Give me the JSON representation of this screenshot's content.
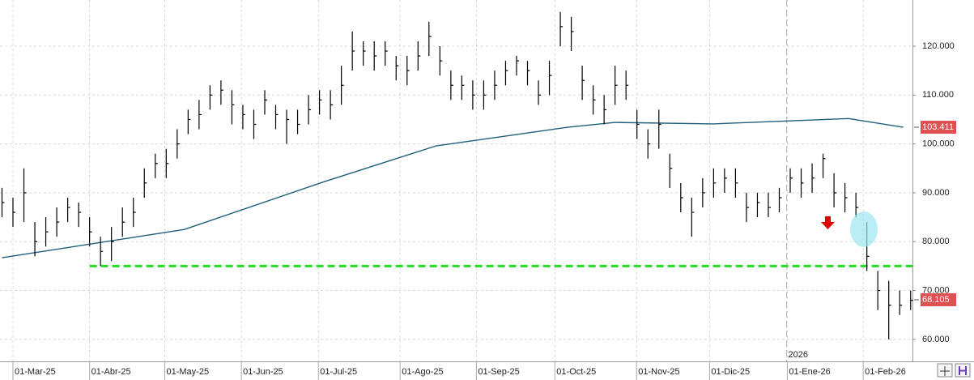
{
  "chart_data": {
    "type": "ohlc",
    "color": "#000000",
    "x": [
      -3,
      0,
      3,
      6,
      9,
      12,
      15,
      18,
      21,
      24,
      27,
      30,
      33,
      36,
      39,
      42,
      45,
      48,
      51,
      54,
      57,
      60,
      63,
      66,
      69,
      72,
      75,
      78,
      81,
      84,
      87,
      90,
      93,
      96,
      99,
      102,
      105,
      108,
      111,
      114,
      117,
      120,
      123,
      126,
      129,
      132,
      135,
      138,
      141,
      144,
      147,
      150,
      153,
      156,
      159,
      162,
      165,
      168,
      171,
      174,
      177,
      180,
      183,
      186,
      189,
      192,
      195,
      198,
      201,
      204,
      207,
      210,
      213,
      216,
      219,
      222,
      225,
      228,
      231,
      234,
      237,
      240,
      243,
      246
    ],
    "high": [
      91,
      89,
      95,
      84,
      85,
      87,
      89,
      88,
      85,
      81,
      83,
      87,
      89,
      95,
      98,
      99,
      103,
      107,
      109,
      112,
      113,
      111,
      108,
      107,
      111,
      108,
      107,
      107,
      110,
      111,
      111,
      116,
      123,
      121,
      121,
      121,
      118,
      118,
      121,
      125,
      120,
      115,
      114,
      113,
      113,
      115,
      117,
      118,
      117,
      113,
      117,
      127,
      126,
      116,
      112,
      110,
      116,
      115,
      107,
      103,
      107,
      98,
      92,
      89,
      93,
      95,
      95,
      95,
      90,
      90,
      90,
      91,
      95,
      95,
      96,
      98,
      94,
      92,
      90,
      84,
      74,
      72,
      70,
      70
    ],
    "low": [
      85,
      83,
      84,
      77,
      79,
      81,
      84,
      83,
      79,
      75,
      76,
      81,
      83,
      89,
      93,
      93,
      97,
      102,
      103,
      107,
      108,
      104,
      103,
      101,
      106,
      103,
      100,
      102,
      104,
      106,
      105,
      108,
      115,
      116,
      115,
      116,
      113,
      112,
      115,
      118,
      114,
      109,
      109,
      107,
      107,
      109,
      112,
      114,
      112,
      108,
      110,
      120,
      119,
      109,
      106,
      104,
      108,
      109,
      101,
      97,
      99,
      91,
      86,
      81,
      87,
      89,
      90,
      89,
      84,
      85,
      85,
      86,
      90,
      89,
      90,
      93,
      87,
      86,
      85,
      74,
      66,
      60,
      65,
      66
    ],
    "close": [
      88,
      86,
      90,
      80,
      82,
      84,
      87,
      86,
      82,
      78,
      80,
      84,
      86,
      92,
      96,
      96,
      100,
      105,
      106,
      110,
      111,
      108,
      106,
      104,
      109,
      106,
      105,
      104,
      107,
      109,
      108,
      112,
      119,
      119,
      118,
      119,
      116,
      115,
      118,
      122,
      117,
      112,
      112,
      110,
      110,
      112,
      115,
      117,
      115,
      110,
      114,
      124,
      123,
      113,
      109,
      107,
      112,
      112,
      104,
      100,
      104,
      95,
      89,
      86,
      90,
      92,
      93,
      92,
      87,
      88,
      87,
      89,
      93,
      92,
      93,
      97,
      90,
      89,
      87,
      77,
      70,
      67,
      67,
      68
    ],
    "ma": {
      "color": "#1f5f7a",
      "x": [
        -3,
        47,
        85,
        116,
        152,
        165,
        192,
        229,
        244
      ],
      "values": [
        76.7,
        82.5,
        92.2,
        99.6,
        103.4,
        104.4,
        104.1,
        105.2,
        103.4
      ],
      "last": {
        "value": 103.411,
        "label": "103.411"
      }
    },
    "last_price": {
      "value": 68.105,
      "label": "68.105"
    },
    "support": {
      "value": 75,
      "color": "#22dd22"
    },
    "year_marker": {
      "x": 212,
      "label": "2026"
    },
    "xlim": [
      -3.55,
      246.5
    ],
    "ylim": [
      55.5,
      129.45
    ],
    "xticks": [
      {
        "value": 0,
        "label": "01-Mar-25"
      },
      {
        "value": 21,
        "label": "01-Abr-25"
      },
      {
        "value": 41.6,
        "label": "01-May-25"
      },
      {
        "value": 62.6,
        "label": "01-Jun-25"
      },
      {
        "value": 83.7,
        "label": "01-Jul-25"
      },
      {
        "value": 106.1,
        "label": "01-Ago-25"
      },
      {
        "value": 127,
        "label": "01-Sep-25"
      },
      {
        "value": 148.5,
        "label": "01-Oct-25"
      },
      {
        "value": 170.9,
        "label": "01-Nov-25"
      },
      {
        "value": 190.9,
        "label": "01-Dic-25"
      },
      {
        "value": 212.2,
        "label": "01-Ene-26"
      },
      {
        "value": 233,
        "label": "01-Feb-26"
      }
    ],
    "yticks": [
      {
        "value": 60,
        "label": "60.000"
      },
      {
        "value": 70,
        "label": "70.000"
      },
      {
        "value": 80,
        "label": "80.000"
      },
      {
        "value": 90,
        "label": "90.000"
      },
      {
        "value": 100,
        "label": "100.000"
      },
      {
        "value": 110,
        "label": "110.000"
      },
      {
        "value": 120,
        "label": "120.000"
      }
    ],
    "grid": true
  }
}
